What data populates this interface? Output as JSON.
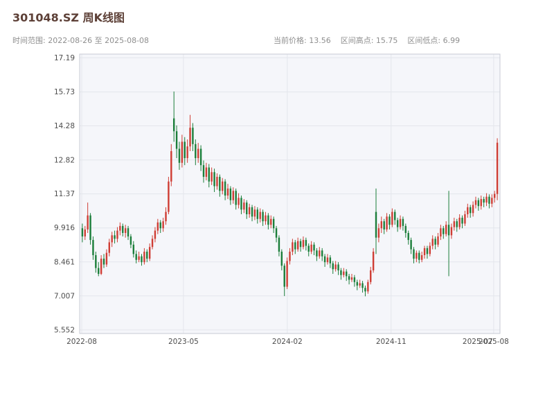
{
  "header": {
    "title": "301048.SZ 周K线图",
    "subtitle_left": "时间范围: 2022-08-26 至 2025-08-08",
    "stat_price": "当前价格: 13.56",
    "stat_high": "区间高点: 15.75",
    "stat_low": "区间低点: 6.99"
  },
  "chart_data": {
    "type": "candlestick",
    "title": "301048.SZ 周K线图",
    "symbol": "301048.SZ",
    "frequency": "weekly",
    "date_range": {
      "start": "2022-08-26",
      "end": "2025-08-08"
    },
    "current_price": 13.56,
    "range_high": 15.75,
    "range_low": 6.99,
    "ylim": [
      5.4,
      17.35
    ],
    "y_ticks": [
      5.552,
      7.007,
      8.461,
      9.916,
      11.37,
      12.82,
      14.28,
      15.73,
      17.19
    ],
    "y_tick_labels": [
      "5.552",
      "7.007",
      "8.461",
      "9.916",
      "11.37",
      "12.82",
      "14.28",
      "15.73",
      "17.19"
    ],
    "x_ticks": [
      {
        "label": "2022-08",
        "pos": 0.005,
        "grid": true
      },
      {
        "label": "2023-05",
        "pos": 0.247,
        "grid": true
      },
      {
        "label": "2024-02",
        "pos": 0.494,
        "grid": true
      },
      {
        "label": "2024-11",
        "pos": 0.741,
        "grid": true
      },
      {
        "label": "2025-07",
        "pos": 0.947,
        "grid": false
      },
      {
        "label": "2025-08",
        "pos": 0.985,
        "grid": true
      }
    ],
    "colors": {
      "up": "#cf3d34",
      "down": "#1b7e3a",
      "plot_bg": "#f5f6fa",
      "grid": "#e4e6ec",
      "border": "#c8cbd4",
      "tick_text": "#4d4d4d"
    },
    "candles": [
      [
        9.9,
        10.1,
        9.3,
        9.55
      ],
      [
        9.55,
        10.0,
        9.4,
        9.85
      ],
      [
        9.85,
        11.0,
        9.7,
        10.45
      ],
      [
        10.45,
        10.55,
        9.2,
        9.4
      ],
      [
        9.4,
        9.55,
        8.55,
        8.75
      ],
      [
        8.75,
        8.9,
        8.0,
        8.2
      ],
      [
        8.2,
        8.45,
        7.85,
        7.95
      ],
      [
        7.95,
        8.75,
        7.9,
        8.6
      ],
      [
        8.6,
        8.8,
        8.2,
        8.35
      ],
      [
        8.35,
        9.0,
        8.25,
        8.85
      ],
      [
        8.85,
        9.45,
        8.7,
        9.3
      ],
      [
        9.3,
        9.75,
        9.1,
        9.6
      ],
      [
        9.6,
        9.8,
        9.25,
        9.45
      ],
      [
        9.45,
        9.95,
        9.3,
        9.8
      ],
      [
        9.8,
        10.15,
        9.6,
        10.0
      ],
      [
        10.0,
        10.1,
        9.55,
        9.7
      ],
      [
        9.7,
        10.05,
        9.5,
        9.9
      ],
      [
        9.9,
        10.0,
        9.4,
        9.55
      ],
      [
        9.55,
        9.65,
        9.05,
        9.2
      ],
      [
        9.2,
        9.35,
        8.65,
        8.8
      ],
      [
        8.8,
        8.95,
        8.4,
        8.55
      ],
      [
        8.55,
        8.9,
        8.45,
        8.7
      ],
      [
        8.7,
        8.8,
        8.3,
        8.45
      ],
      [
        8.45,
        9.05,
        8.35,
        8.9
      ],
      [
        8.9,
        9.0,
        8.45,
        8.6
      ],
      [
        8.6,
        9.25,
        8.5,
        9.1
      ],
      [
        9.1,
        9.6,
        9.0,
        9.45
      ],
      [
        9.45,
        9.95,
        9.3,
        9.8
      ],
      [
        9.8,
        10.3,
        9.65,
        10.15
      ],
      [
        10.15,
        10.25,
        9.7,
        9.9
      ],
      [
        9.9,
        10.35,
        9.75,
        10.2
      ],
      [
        10.2,
        10.8,
        10.05,
        10.6
      ],
      [
        10.6,
        12.1,
        10.5,
        11.9
      ],
      [
        11.9,
        13.5,
        11.7,
        13.2
      ],
      [
        14.6,
        15.75,
        13.6,
        14.05
      ],
      [
        14.05,
        14.3,
        12.9,
        13.3
      ],
      [
        13.3,
        13.6,
        12.4,
        12.7
      ],
      [
        12.7,
        13.9,
        12.5,
        13.6
      ],
      [
        13.6,
        13.8,
        12.6,
        12.9
      ],
      [
        12.9,
        13.7,
        12.7,
        13.4
      ],
      [
        13.4,
        14.75,
        13.2,
        14.2
      ],
      [
        14.2,
        14.4,
        13.2,
        13.5
      ],
      [
        13.5,
        13.7,
        12.6,
        12.9
      ],
      [
        12.9,
        13.55,
        12.7,
        13.3
      ],
      [
        13.3,
        13.45,
        12.35,
        12.6
      ],
      [
        12.6,
        12.8,
        11.85,
        12.1
      ],
      [
        12.1,
        12.7,
        11.95,
        12.5
      ],
      [
        12.5,
        12.65,
        11.65,
        11.9
      ],
      [
        11.9,
        12.5,
        11.75,
        12.3
      ],
      [
        12.3,
        12.45,
        11.45,
        11.7
      ],
      [
        11.7,
        12.25,
        11.55,
        12.1
      ],
      [
        12.1,
        12.2,
        11.25,
        11.5
      ],
      [
        11.5,
        12.05,
        11.35,
        11.9
      ],
      [
        11.9,
        12.0,
        11.1,
        11.3
      ],
      [
        11.3,
        11.8,
        11.15,
        11.6
      ],
      [
        11.6,
        11.7,
        10.9,
        11.1
      ],
      [
        11.1,
        11.65,
        10.95,
        11.5
      ],
      [
        11.5,
        11.6,
        10.7,
        10.9
      ],
      [
        10.9,
        11.4,
        10.75,
        11.2
      ],
      [
        11.2,
        11.3,
        10.5,
        10.7
      ],
      [
        10.7,
        11.15,
        10.55,
        11.0
      ],
      [
        11.0,
        11.1,
        10.3,
        10.5
      ],
      [
        10.5,
        10.95,
        10.35,
        10.8
      ],
      [
        10.8,
        10.9,
        10.2,
        10.4
      ],
      [
        10.4,
        10.85,
        10.25,
        10.7
      ],
      [
        10.7,
        10.8,
        10.1,
        10.3
      ],
      [
        10.3,
        10.75,
        10.15,
        10.6
      ],
      [
        10.6,
        10.7,
        10.0,
        10.2
      ],
      [
        10.2,
        10.6,
        10.05,
        10.45
      ],
      [
        10.45,
        10.55,
        9.85,
        10.05
      ],
      [
        10.05,
        10.45,
        9.9,
        10.3
      ],
      [
        10.3,
        10.4,
        9.7,
        9.9
      ],
      [
        9.9,
        10.0,
        9.3,
        9.5
      ],
      [
        9.5,
        9.6,
        8.7,
        8.9
      ],
      [
        8.9,
        9.0,
        8.1,
        8.3
      ],
      [
        8.3,
        8.4,
        7.0,
        7.4
      ],
      [
        7.4,
        8.65,
        7.3,
        8.5
      ],
      [
        8.5,
        9.05,
        8.35,
        8.9
      ],
      [
        8.9,
        9.45,
        8.75,
        9.3
      ],
      [
        9.3,
        9.4,
        8.8,
        9.0
      ],
      [
        9.0,
        9.5,
        8.9,
        9.35
      ],
      [
        9.35,
        9.45,
        8.9,
        9.1
      ],
      [
        9.1,
        9.55,
        9.0,
        9.4
      ],
      [
        9.4,
        9.5,
        8.95,
        9.15
      ],
      [
        9.15,
        9.25,
        8.7,
        8.9
      ],
      [
        8.9,
        9.35,
        8.8,
        9.2
      ],
      [
        9.2,
        9.3,
        8.75,
        8.95
      ],
      [
        8.95,
        9.05,
        8.5,
        8.7
      ],
      [
        8.7,
        9.1,
        8.6,
        8.95
      ],
      [
        8.95,
        9.05,
        8.5,
        8.7
      ],
      [
        8.7,
        8.8,
        8.25,
        8.45
      ],
      [
        8.45,
        8.8,
        8.35,
        8.65
      ],
      [
        8.65,
        8.75,
        8.2,
        8.4
      ],
      [
        8.4,
        8.5,
        7.95,
        8.15
      ],
      [
        8.15,
        8.5,
        8.05,
        8.35
      ],
      [
        8.35,
        8.45,
        7.9,
        8.1
      ],
      [
        8.1,
        8.2,
        7.7,
        7.9
      ],
      [
        7.9,
        8.2,
        7.8,
        8.05
      ],
      [
        8.05,
        8.15,
        7.65,
        7.85
      ],
      [
        7.85,
        7.95,
        7.5,
        7.7
      ],
      [
        7.7,
        7.95,
        7.6,
        7.8
      ],
      [
        7.8,
        7.9,
        7.4,
        7.6
      ],
      [
        7.6,
        7.7,
        7.25,
        7.45
      ],
      [
        7.45,
        7.7,
        7.35,
        7.55
      ],
      [
        7.55,
        7.65,
        7.15,
        7.35
      ],
      [
        7.35,
        7.45,
        6.99,
        7.2
      ],
      [
        7.2,
        7.7,
        7.1,
        7.6
      ],
      [
        7.6,
        8.25,
        7.5,
        8.1
      ],
      [
        8.1,
        9.05,
        8.0,
        8.9
      ],
      [
        10.6,
        11.6,
        8.8,
        9.5
      ],
      [
        9.5,
        10.1,
        9.3,
        9.9
      ],
      [
        9.9,
        10.4,
        9.7,
        10.2
      ],
      [
        10.2,
        10.3,
        9.65,
        9.85
      ],
      [
        9.85,
        10.55,
        9.75,
        10.4
      ],
      [
        10.4,
        10.5,
        9.85,
        10.05
      ],
      [
        10.05,
        10.75,
        9.95,
        10.6
      ],
      [
        10.6,
        10.7,
        10.05,
        10.25
      ],
      [
        10.25,
        10.35,
        9.75,
        9.95
      ],
      [
        9.95,
        10.45,
        9.85,
        10.3
      ],
      [
        10.3,
        10.4,
        9.8,
        10.0
      ],
      [
        10.0,
        10.1,
        9.5,
        9.7
      ],
      [
        9.7,
        9.8,
        9.2,
        9.4
      ],
      [
        9.4,
        9.5,
        8.8,
        9.0
      ],
      [
        9.0,
        9.1,
        8.4,
        8.6
      ],
      [
        8.6,
        8.95,
        8.45,
        8.85
      ],
      [
        8.85,
        8.95,
        8.4,
        8.55
      ],
      [
        8.55,
        8.9,
        8.45,
        8.75
      ],
      [
        8.75,
        9.15,
        8.6,
        9.05
      ],
      [
        9.05,
        9.15,
        8.6,
        8.8
      ],
      [
        8.8,
        9.3,
        8.7,
        9.15
      ],
      [
        9.15,
        9.6,
        9.0,
        9.45
      ],
      [
        9.45,
        9.55,
        9.0,
        9.2
      ],
      [
        9.2,
        9.7,
        9.1,
        9.55
      ],
      [
        9.55,
        10.05,
        9.4,
        9.9
      ],
      [
        9.9,
        10.0,
        9.45,
        9.65
      ],
      [
        9.65,
        10.2,
        9.55,
        10.05
      ],
      [
        10.05,
        11.5,
        7.85,
        9.6
      ],
      [
        9.6,
        10.1,
        9.45,
        9.95
      ],
      [
        9.95,
        10.35,
        9.8,
        10.2
      ],
      [
        10.2,
        10.3,
        9.75,
        9.95
      ],
      [
        9.95,
        10.5,
        9.85,
        10.35
      ],
      [
        10.35,
        10.45,
        9.9,
        10.1
      ],
      [
        10.1,
        10.65,
        10.0,
        10.5
      ],
      [
        10.5,
        10.95,
        10.35,
        10.8
      ],
      [
        10.8,
        10.9,
        10.35,
        10.55
      ],
      [
        10.55,
        11.05,
        10.4,
        10.9
      ],
      [
        10.9,
        11.25,
        10.75,
        11.1
      ],
      [
        11.1,
        11.2,
        10.65,
        10.85
      ],
      [
        10.85,
        11.3,
        10.7,
        11.15
      ],
      [
        11.15,
        11.25,
        10.8,
        11.0
      ],
      [
        11.0,
        11.4,
        10.85,
        11.25
      ],
      [
        11.25,
        11.35,
        10.75,
        10.95
      ],
      [
        10.95,
        11.35,
        10.8,
        11.2
      ],
      [
        11.2,
        11.5,
        11.0,
        11.37
      ],
      [
        11.37,
        13.75,
        11.1,
        13.56
      ]
    ]
  }
}
